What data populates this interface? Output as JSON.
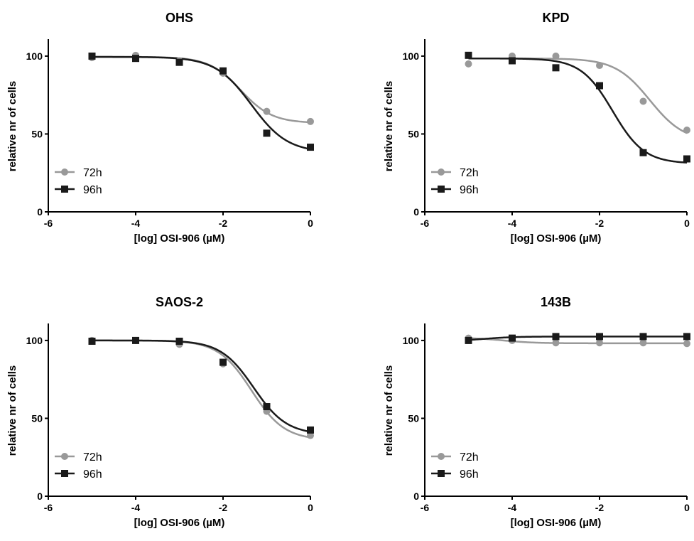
{
  "colors": {
    "h72": "#999999",
    "h96": "#1a1a1a",
    "axis": "#000000"
  },
  "legend": [
    {
      "name": "72h",
      "marker": "circle",
      "color": "#999999"
    },
    {
      "name": "96h",
      "marker": "square",
      "color": "#1a1a1a"
    }
  ],
  "chart_data": [
    {
      "type": "scatter",
      "title": "OHS",
      "xlabel": "[log] OSI-906 (µM)",
      "ylabel": "relative nr of cells",
      "xlim": [
        -6,
        0
      ],
      "ylim": [
        0,
        110
      ],
      "xticks": [
        -6,
        -4,
        -2,
        0
      ],
      "yticks": [
        0,
        50,
        100
      ],
      "legend_position": "bottom-left",
      "series": [
        {
          "name": "72h",
          "x": [
            -5,
            -4,
            -3,
            -2,
            -1,
            0
          ],
          "y": [
            99,
            100.5,
            97,
            89,
            64.5,
            58
          ],
          "curve": {
            "bottom": 57,
            "top": 99.5,
            "logec50": -1.6,
            "hill": 1.2
          }
        },
        {
          "name": "96h",
          "x": [
            -5,
            -4,
            -3,
            -2,
            -1,
            0
          ],
          "y": [
            100,
            98.5,
            96,
            90.5,
            50.5,
            41.5
          ],
          "curve": {
            "bottom": 38,
            "top": 99.5,
            "logec50": -1.35,
            "hill": 1.05
          }
        }
      ]
    },
    {
      "type": "scatter",
      "title": "KPD",
      "xlabel": "[log] OSI-906 (µM)",
      "ylabel": "relative nr of cells",
      "xlim": [
        -6,
        0
      ],
      "ylim": [
        0,
        110
      ],
      "xticks": [
        -6,
        -4,
        -2,
        0
      ],
      "yticks": [
        0,
        50,
        100
      ],
      "legend_position": "bottom-left",
      "series": [
        {
          "name": "72h",
          "x": [
            -5,
            -4,
            -3,
            -2,
            -1,
            0
          ],
          "y": [
            95,
            100,
            100,
            94,
            71,
            52.5
          ],
          "curve": {
            "bottom": 45,
            "top": 98.5,
            "logec50": -0.85,
            "hill": 1.1
          }
        },
        {
          "name": "96h",
          "x": [
            -5,
            -4,
            -3,
            -2,
            -1,
            0
          ],
          "y": [
            100.5,
            97,
            92.5,
            81,
            38,
            34
          ],
          "curve": {
            "bottom": 31,
            "top": 98.5,
            "logec50": -1.7,
            "hill": 1.2
          }
        }
      ]
    },
    {
      "type": "scatter",
      "title": "SAOS-2",
      "xlabel": "[log] OSI-906 (µM)",
      "ylabel": "relative nr of cells",
      "xlim": [
        -6,
        0
      ],
      "ylim": [
        0,
        110
      ],
      "xticks": [
        -6,
        -4,
        -2,
        0
      ],
      "yticks": [
        0,
        50,
        100
      ],
      "legend_position": "bottom-left",
      "series": [
        {
          "name": "72h",
          "x": [
            -5,
            -4,
            -3,
            -2,
            -1,
            0
          ],
          "y": [
            100,
            100,
            97.5,
            85,
            54.5,
            39
          ],
          "curve": {
            "bottom": 36,
            "top": 100,
            "logec50": -1.35,
            "hill": 1.15
          }
        },
        {
          "name": "96h",
          "x": [
            -5,
            -4,
            -3,
            -2,
            -1,
            0
          ],
          "y": [
            99.5,
            100,
            99.5,
            86,
            57.5,
            42.5
          ],
          "curve": {
            "bottom": 39.5,
            "top": 100,
            "logec50": -1.3,
            "hill": 1.15
          }
        }
      ]
    },
    {
      "type": "scatter",
      "title": "143B",
      "xlabel": "[log] OSI-906 (µM)",
      "ylabel": "relative nr of cells",
      "xlim": [
        -6,
        0
      ],
      "ylim": [
        0,
        110
      ],
      "xticks": [
        -6,
        -4,
        -2,
        0
      ],
      "yticks": [
        0,
        50,
        100
      ],
      "legend_position": "bottom-left",
      "series": [
        {
          "name": "72h",
          "x": [
            -5,
            -4,
            -3,
            -2,
            -1,
            0
          ],
          "y": [
            101.5,
            100,
            98.5,
            98.5,
            98.5,
            98
          ],
          "curve": {
            "bottom": 98.2,
            "top": 101.8,
            "logec50": -4.2,
            "hill": 1.2
          }
        },
        {
          "name": "96h",
          "x": [
            -5,
            -4,
            -3,
            -2,
            -1,
            0
          ],
          "y": [
            100,
            101.5,
            102.5,
            102.5,
            102.5,
            102.5
          ],
          "curve": {
            "bottom": 102.5,
            "top": 99.7,
            "logec50": -4.6,
            "hill": 1.3
          }
        }
      ]
    }
  ]
}
